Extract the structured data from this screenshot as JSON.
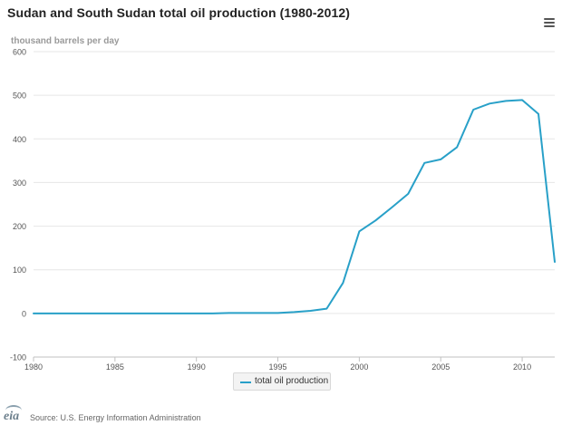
{
  "title": "Sudan and South Sudan total oil production (1980-2012)",
  "ylabel": "thousand barrels per day",
  "legend_label": "total oil production",
  "logo_text": "eia",
  "source": "Source: U.S. Energy Information Administration",
  "menu_icon": "hamburger-menu-icon",
  "colors": {
    "line": "#28a0c8",
    "grid": "#e6e6e6",
    "axis": "#c0c0c0",
    "tick_text": "#555555"
  },
  "chart_data": {
    "type": "line",
    "title": "Sudan and South Sudan total oil production (1980-2012)",
    "ylabel": "thousand barrels per day",
    "xlabel": "",
    "xlim": [
      1980,
      2012
    ],
    "ylim": [
      -100,
      600
    ],
    "xticks": [
      1980,
      1985,
      1990,
      1995,
      2000,
      2005,
      2010
    ],
    "yticks": [
      -100,
      0,
      100,
      200,
      300,
      400,
      500,
      600
    ],
    "grid": "horizontal",
    "legend_position": "bottom-center",
    "series": [
      {
        "name": "total oil production",
        "color": "#28a0c8",
        "x": [
          1980,
          1981,
          1982,
          1983,
          1984,
          1985,
          1986,
          1987,
          1988,
          1989,
          1990,
          1991,
          1992,
          1993,
          1994,
          1995,
          1996,
          1997,
          1998,
          1999,
          2000,
          2001,
          2002,
          2003,
          2004,
          2005,
          2006,
          2007,
          2008,
          2009,
          2010,
          2011,
          2012
        ],
        "y": [
          0,
          0,
          0,
          0,
          0,
          0,
          0,
          0,
          0,
          0,
          0,
          0,
          1,
          1,
          1,
          1,
          3,
          6,
          11,
          70,
          188,
          213,
          243,
          274,
          345,
          353,
          381,
          467,
          481,
          487,
          489,
          457,
          118
        ]
      }
    ]
  }
}
